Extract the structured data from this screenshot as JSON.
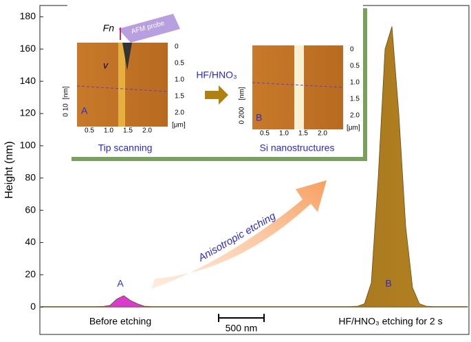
{
  "chart_data": {
    "type": "area",
    "y_label": "Height (nm)",
    "values": [
      0.3,
      0.3,
      0.3,
      0.3,
      0.3,
      0.3,
      0.3,
      0.3,
      0.3,
      0.4,
      1,
      5,
      7,
      4,
      2,
      0.5,
      0.3,
      0.3,
      0.3,
      0.3,
      0.3,
      0.3,
      0.3,
      0.3,
      0.3,
      0.3,
      0.3,
      0.3,
      0.3,
      0.3,
      0.3,
      0.3,
      0.3,
      0.3,
      0.3,
      0.3,
      0.3,
      0.3,
      0.3,
      0.3,
      0.3,
      0.3,
      0.3,
      0.3,
      0.3,
      0.3,
      0.5,
      2,
      15,
      80,
      160,
      174,
      120,
      50,
      12,
      2,
      0.5,
      0.3,
      0.3,
      0.3,
      0.3,
      0.3,
      0.3
    ],
    "color": "#6b4a10",
    "ylim": [
      -17,
      187
    ],
    "yticks": [
      0,
      20,
      40,
      60,
      80,
      100,
      120,
      140,
      160,
      180
    ],
    "annotations": {
      "peak_a": "A",
      "peak_b": "B",
      "before": "Before etching",
      "scale_bar": "500 nm",
      "after": "HF/HNO₃ etching for 2 s",
      "arrow": "Anisotropic etching"
    },
    "inset": {
      "left_caption": "Tip scanning",
      "right_caption": "Si nanostructures",
      "reagent": "HF/HNO₃",
      "probe": "AFM probe",
      "force": "Fn",
      "velocity": "v",
      "label_a": "A",
      "label_b": "B",
      "z_unit": "[nm]",
      "x_unit": "[μm]",
      "xticks": [
        "0.5",
        "1.0",
        "1.5",
        "2.0"
      ],
      "yticks": [
        "0",
        "0.5",
        "1.0",
        "1.5",
        "2.0"
      ],
      "z_a": "0  10",
      "z_b": "0  200"
    }
  }
}
